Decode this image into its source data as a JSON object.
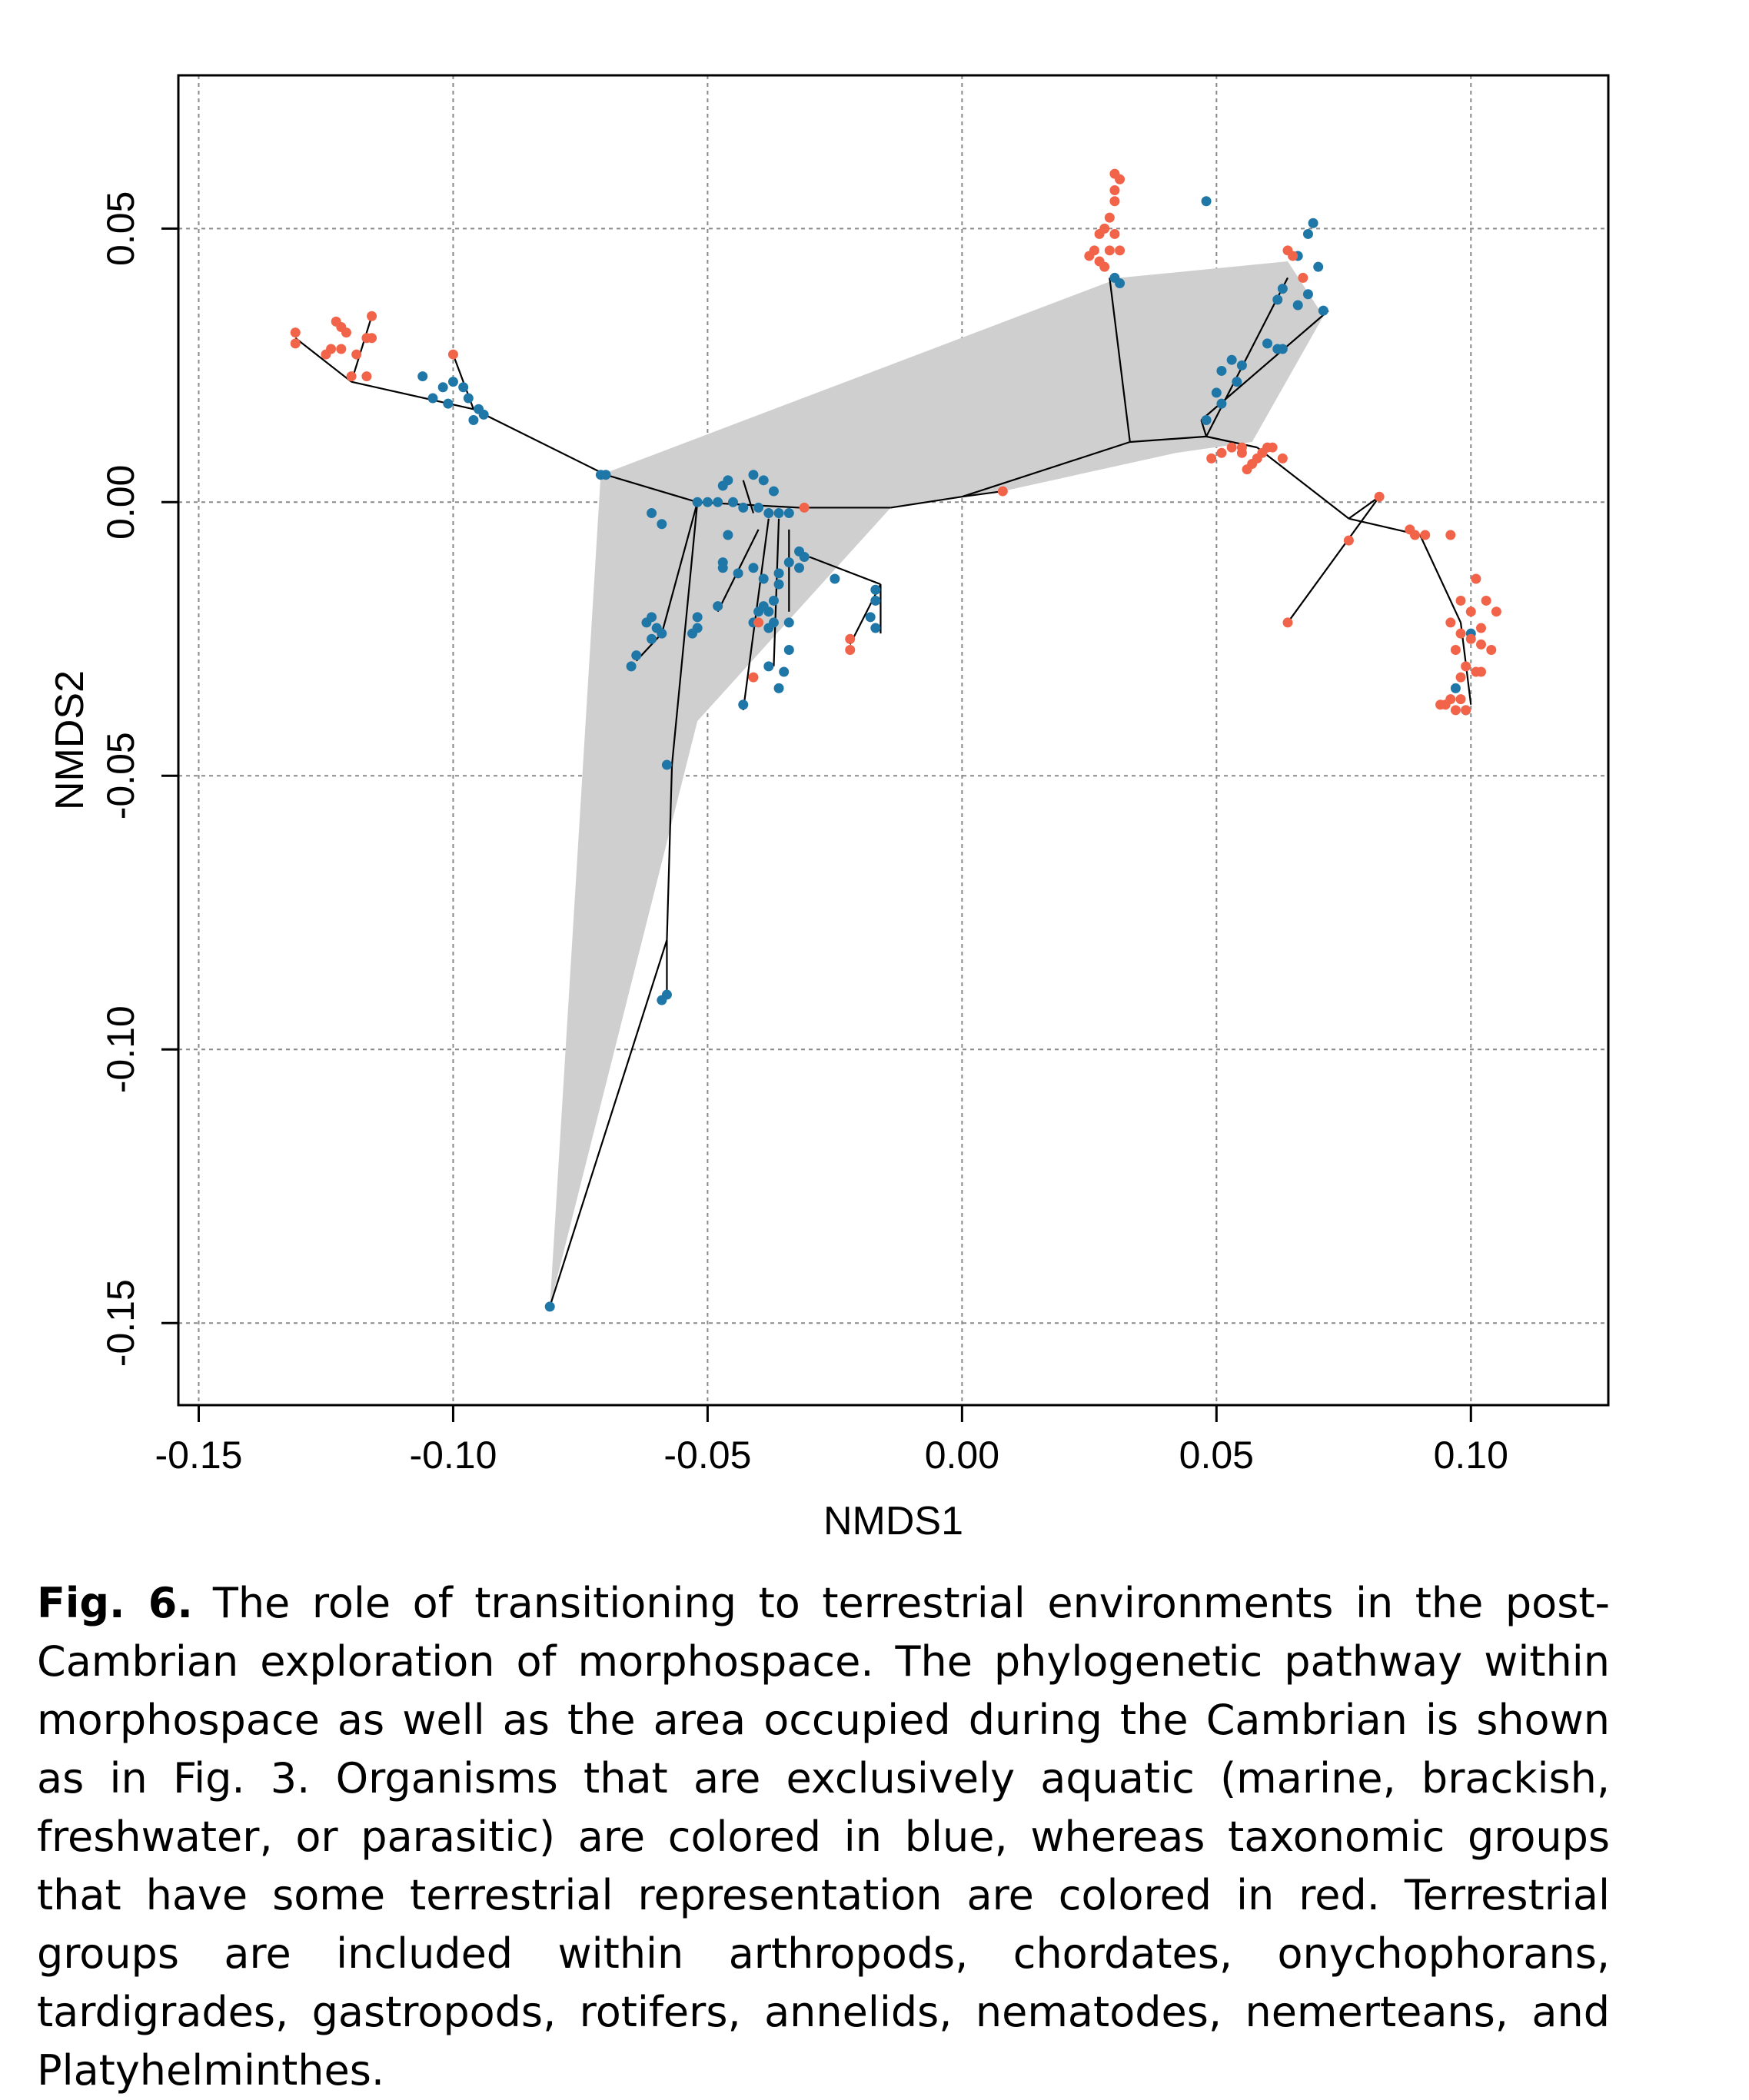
{
  "figure": {
    "xlabel": "NMDS1",
    "ylabel": "NMDS2",
    "caption_label": "Fig. 6.",
    "caption_text": "The role of transitioning to terrestrial environments in the post-Cambrian exploration of morphospace. The phylogenetic pathway within morphospace as well as the area occupied during the Cambrian is shown as in Fig. 3. Organisms that are exclusively aquatic (marine, brackish, freshwater, or parasitic) are colored in blue, whereas taxonomic groups that have some terrestrial representation are colored in red. Terrestrial groups are included within arthropods, chordates, onychophorans, tardigrades, gastropods, rotifers, annelids, nematodes, nemerteans, and Platyhelminthes."
  },
  "chart_data": {
    "type": "scatter",
    "xlabel": "NMDS1",
    "ylabel": "NMDS2",
    "xlim": [
      -0.154,
      0.127
    ],
    "ylim": [
      -0.165,
      0.078
    ],
    "x_ticks": [
      -0.15,
      -0.1,
      -0.05,
      0.0,
      0.05,
      0.1
    ],
    "x_tick_labels": [
      "-0.15",
      "-0.10",
      "-0.05",
      "0.00",
      "0.05",
      "0.10"
    ],
    "y_ticks": [
      -0.15,
      -0.1,
      -0.05,
      0.0,
      0.05
    ],
    "y_tick_labels": [
      "-0.15",
      "-0.10",
      "-0.05",
      "0.00",
      "0.05"
    ],
    "grid": true,
    "colors": {
      "aquatic": "#1f77a8",
      "terrestrial": "#f2644a",
      "cambrian_area": "#cfcfcf",
      "tree": "#000000"
    },
    "cambrian_hull": [
      [
        -0.071,
        0.005
      ],
      [
        0.031,
        0.041
      ],
      [
        0.064,
        0.044
      ],
      [
        0.071,
        0.034
      ],
      [
        0.057,
        0.011
      ],
      [
        0.042,
        0.009
      ],
      [
        0.008,
        0.002
      ],
      [
        -0.014,
        -0.001
      ],
      [
        -0.052,
        -0.04
      ],
      [
        -0.081,
        -0.147
      ]
    ],
    "tree_edges": [
      [
        -0.032,
        -0.001,
        -0.014,
        -0.001
      ],
      [
        -0.014,
        -0.001,
        0.0,
        0.001
      ],
      [
        0.0,
        0.001,
        0.008,
        0.002
      ],
      [
        0.0,
        0.001,
        0.033,
        0.011
      ],
      [
        0.033,
        0.011,
        0.048,
        0.012
      ],
      [
        0.033,
        0.011,
        0.029,
        0.041
      ],
      [
        0.048,
        0.012,
        0.064,
        0.041
      ],
      [
        0.048,
        0.012,
        0.047,
        0.015
      ],
      [
        0.047,
        0.015,
        0.072,
        0.035
      ],
      [
        0.048,
        0.012,
        0.058,
        0.01
      ],
      [
        0.058,
        0.01,
        0.076,
        -0.003
      ],
      [
        0.076,
        -0.003,
        0.09,
        -0.006
      ],
      [
        0.076,
        -0.003,
        0.082,
        0.001
      ],
      [
        0.082,
        0.001,
        0.064,
        -0.022
      ],
      [
        0.09,
        -0.006,
        0.098,
        -0.022
      ],
      [
        0.098,
        -0.022,
        0.1,
        -0.037
      ],
      [
        -0.032,
        -0.001,
        -0.052,
        0.0
      ],
      [
        -0.052,
        0.0,
        -0.07,
        0.005
      ],
      [
        -0.07,
        0.005,
        -0.096,
        0.017
      ],
      [
        -0.096,
        0.017,
        -0.12,
        0.022
      ],
      [
        -0.096,
        0.017,
        -0.1,
        0.027
      ],
      [
        -0.12,
        0.022,
        -0.131,
        0.03
      ],
      [
        -0.12,
        0.022,
        -0.116,
        0.034
      ],
      [
        -0.052,
        0.0,
        -0.059,
        -0.024
      ],
      [
        -0.059,
        -0.024,
        -0.064,
        -0.029
      ],
      [
        -0.052,
        0.0,
        -0.057,
        -0.048
      ],
      [
        -0.057,
        -0.048,
        -0.058,
        -0.08
      ],
      [
        -0.058,
        -0.08,
        -0.081,
        -0.147
      ],
      [
        -0.058,
        -0.08,
        -0.058,
        -0.09
      ],
      [
        -0.038,
        -0.003,
        -0.043,
        -0.038
      ],
      [
        -0.036,
        -0.003,
        -0.037,
        -0.03
      ],
      [
        -0.034,
        -0.005,
        -0.034,
        -0.02
      ],
      [
        -0.03,
        -0.01,
        -0.016,
        -0.015
      ],
      [
        -0.016,
        -0.015,
        -0.016,
        -0.024
      ],
      [
        -0.016,
        -0.015,
        -0.022,
        -0.026
      ],
      [
        -0.04,
        -0.005,
        -0.048,
        -0.02
      ],
      [
        -0.041,
        -0.002,
        -0.043,
        0.004
      ]
    ],
    "series": [
      {
        "name": "aquatic",
        "points": [
          [
            -0.081,
            -0.147
          ],
          [
            -0.058,
            -0.09
          ],
          [
            -0.059,
            -0.091
          ],
          [
            -0.058,
            -0.048
          ],
          [
            -0.07,
            0.005
          ],
          [
            -0.071,
            0.005
          ],
          [
            -0.106,
            0.023
          ],
          [
            -0.104,
            0.019
          ],
          [
            -0.102,
            0.021
          ],
          [
            -0.1,
            0.022
          ],
          [
            -0.098,
            0.021
          ],
          [
            -0.097,
            0.019
          ],
          [
            -0.095,
            0.017
          ],
          [
            -0.094,
            0.016
          ],
          [
            -0.096,
            0.015
          ],
          [
            -0.101,
            0.018
          ],
          [
            -0.059,
            -0.004
          ],
          [
            -0.061,
            -0.002
          ],
          [
            -0.052,
            0.0
          ],
          [
            -0.05,
            0.0
          ],
          [
            -0.048,
            0.0
          ],
          [
            -0.045,
            0.0
          ],
          [
            -0.043,
            -0.001
          ],
          [
            -0.04,
            -0.001
          ],
          [
            -0.038,
            -0.002
          ],
          [
            -0.036,
            -0.002
          ],
          [
            -0.034,
            -0.002
          ],
          [
            -0.047,
            0.003
          ],
          [
            -0.046,
            0.004
          ],
          [
            -0.041,
            0.005
          ],
          [
            -0.039,
            0.004
          ],
          [
            -0.037,
            0.002
          ],
          [
            -0.046,
            -0.006
          ],
          [
            -0.047,
            -0.012
          ],
          [
            -0.044,
            -0.013
          ],
          [
            -0.041,
            -0.012
          ],
          [
            -0.039,
            -0.014
          ],
          [
            -0.036,
            -0.013
          ],
          [
            -0.034,
            -0.011
          ],
          [
            -0.032,
            -0.009
          ],
          [
            -0.047,
            -0.011
          ],
          [
            -0.036,
            -0.015
          ],
          [
            -0.037,
            -0.018
          ],
          [
            -0.038,
            -0.02
          ],
          [
            -0.037,
            -0.022
          ],
          [
            -0.038,
            -0.023
          ],
          [
            -0.034,
            -0.022
          ],
          [
            -0.032,
            -0.012
          ],
          [
            -0.031,
            -0.01
          ],
          [
            -0.04,
            -0.02
          ],
          [
            -0.041,
            -0.022
          ],
          [
            -0.039,
            -0.019
          ],
          [
            -0.061,
            -0.021
          ],
          [
            -0.062,
            -0.022
          ],
          [
            -0.06,
            -0.023
          ],
          [
            -0.061,
            -0.025
          ],
          [
            -0.064,
            -0.028
          ],
          [
            -0.065,
            -0.03
          ],
          [
            -0.059,
            -0.024
          ],
          [
            -0.052,
            -0.021
          ],
          [
            -0.052,
            -0.023
          ],
          [
            -0.053,
            -0.024
          ],
          [
            -0.048,
            -0.019
          ],
          [
            -0.043,
            -0.037
          ],
          [
            -0.036,
            -0.034
          ],
          [
            -0.035,
            -0.031
          ],
          [
            -0.034,
            -0.027
          ],
          [
            -0.038,
            -0.03
          ],
          [
            -0.025,
            -0.014
          ],
          [
            -0.017,
            -0.016
          ],
          [
            -0.017,
            -0.018
          ],
          [
            -0.018,
            -0.021
          ],
          [
            -0.017,
            -0.023
          ],
          [
            0.048,
            0.055
          ],
          [
            0.068,
            0.049
          ],
          [
            0.069,
            0.051
          ],
          [
            0.07,
            0.043
          ],
          [
            0.068,
            0.038
          ],
          [
            0.066,
            0.036
          ],
          [
            0.063,
            0.039
          ],
          [
            0.062,
            0.037
          ],
          [
            0.071,
            0.035
          ],
          [
            0.06,
            0.029
          ],
          [
            0.062,
            0.028
          ],
          [
            0.063,
            0.028
          ],
          [
            0.053,
            0.026
          ],
          [
            0.055,
            0.025
          ],
          [
            0.054,
            0.022
          ],
          [
            0.051,
            0.024
          ],
          [
            0.05,
            0.02
          ],
          [
            0.051,
            0.018
          ],
          [
            0.048,
            0.015
          ],
          [
            0.031,
            0.04
          ],
          [
            0.03,
            0.041
          ],
          [
            0.066,
            0.045
          ],
          [
            0.099,
            -0.038
          ],
          [
            0.097,
            -0.034
          ],
          [
            0.1,
            -0.024
          ]
        ]
      },
      {
        "name": "terrestrial",
        "points": [
          [
            -0.131,
            0.031
          ],
          [
            -0.131,
            0.029
          ],
          [
            -0.125,
            0.027
          ],
          [
            -0.124,
            0.028
          ],
          [
            -0.122,
            0.028
          ],
          [
            -0.123,
            0.033
          ],
          [
            -0.122,
            0.032
          ],
          [
            -0.121,
            0.031
          ],
          [
            -0.119,
            0.027
          ],
          [
            -0.116,
            0.034
          ],
          [
            -0.116,
            0.03
          ],
          [
            -0.117,
            0.03
          ],
          [
            -0.12,
            0.023
          ],
          [
            -0.117,
            0.023
          ],
          [
            -0.1,
            0.027
          ],
          [
            -0.031,
            -0.001
          ],
          [
            -0.04,
            -0.022
          ],
          [
            -0.041,
            -0.032
          ],
          [
            -0.022,
            -0.027
          ],
          [
            -0.022,
            -0.025
          ],
          [
            0.008,
            0.002
          ],
          [
            0.03,
            0.06
          ],
          [
            0.031,
            0.059
          ],
          [
            0.03,
            0.057
          ],
          [
            0.03,
            0.055
          ],
          [
            0.029,
            0.052
          ],
          [
            0.03,
            0.049
          ],
          [
            0.028,
            0.05
          ],
          [
            0.027,
            0.049
          ],
          [
            0.026,
            0.046
          ],
          [
            0.025,
            0.045
          ],
          [
            0.029,
            0.046
          ],
          [
            0.027,
            0.044
          ],
          [
            0.028,
            0.043
          ],
          [
            0.031,
            0.046
          ],
          [
            0.049,
            0.008
          ],
          [
            0.051,
            0.009
          ],
          [
            0.053,
            0.01
          ],
          [
            0.055,
            0.009
          ],
          [
            0.057,
            0.007
          ],
          [
            0.058,
            0.008
          ],
          [
            0.059,
            0.009
          ],
          [
            0.06,
            0.01
          ],
          [
            0.061,
            0.01
          ],
          [
            0.063,
            0.008
          ],
          [
            0.056,
            0.006
          ],
          [
            0.055,
            0.01
          ],
          [
            0.064,
            0.046
          ],
          [
            0.065,
            0.045
          ],
          [
            0.067,
            0.041
          ],
          [
            0.082,
            0.001
          ],
          [
            0.076,
            -0.007
          ],
          [
            0.064,
            -0.022
          ],
          [
            0.088,
            -0.005
          ],
          [
            0.089,
            -0.006
          ],
          [
            0.091,
            -0.006
          ],
          [
            0.096,
            -0.006
          ],
          [
            0.101,
            -0.014
          ],
          [
            0.098,
            -0.018
          ],
          [
            0.103,
            -0.018
          ],
          [
            0.096,
            -0.022
          ],
          [
            0.098,
            -0.024
          ],
          [
            0.1,
            -0.025
          ],
          [
            0.102,
            -0.023
          ],
          [
            0.104,
            -0.027
          ],
          [
            0.097,
            -0.027
          ],
          [
            0.099,
            -0.03
          ],
          [
            0.101,
            -0.031
          ],
          [
            0.102,
            -0.031
          ],
          [
            0.098,
            -0.032
          ],
          [
            0.094,
            -0.037
          ],
          [
            0.095,
            -0.037
          ],
          [
            0.097,
            -0.038
          ],
          [
            0.099,
            -0.038
          ],
          [
            0.096,
            -0.036
          ],
          [
            0.098,
            -0.036
          ],
          [
            0.105,
            -0.02
          ],
          [
            0.1,
            -0.02
          ],
          [
            0.102,
            -0.026
          ]
        ]
      }
    ]
  }
}
